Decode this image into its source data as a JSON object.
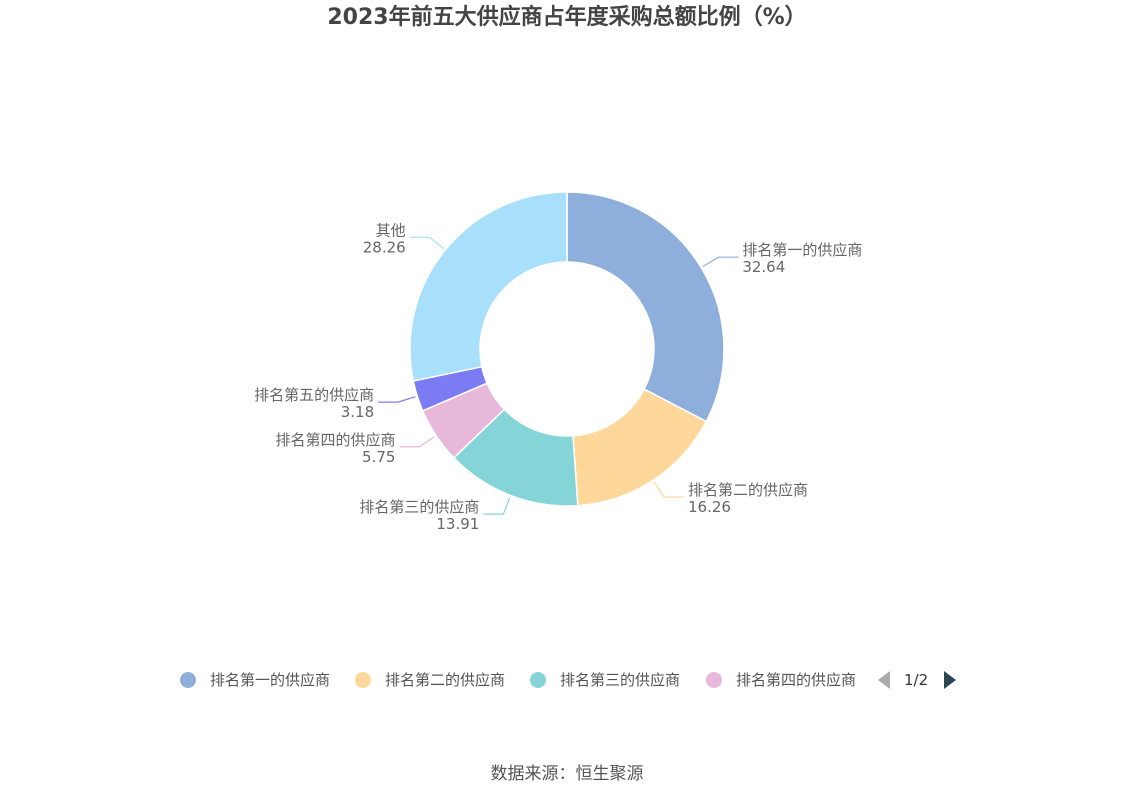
{
  "title": "2023年前五大供应商占年度采购总额比例（%）",
  "source": "数据来源：恒生聚源",
  "chart_data": {
    "type": "pie",
    "variant": "donut",
    "title": "2023年前五大供应商占年度采购总额比例（%）",
    "categories": [
      "排名第一的供应商",
      "排名第二的供应商",
      "排名第三的供应商",
      "排名第四的供应商",
      "排名第五的供应商",
      "其他"
    ],
    "values": [
      32.64,
      16.26,
      13.91,
      5.75,
      3.18,
      28.26
    ],
    "value_labels": [
      "32.64",
      "16.26",
      "13.91",
      "5.75",
      "3.18",
      "28.26"
    ],
    "colors": [
      "#8eaedc",
      "#fdd89a",
      "#85d5d8",
      "#e7b8d9",
      "#7b7cf3",
      "#a8dffa"
    ],
    "legend_position": "bottom",
    "legend_visible_items": [
      "排名第一的供应商",
      "排名第二的供应商",
      "排名第三的供应商",
      "排名第四的供应商"
    ]
  },
  "legend": {
    "items": [
      {
        "label": "排名第一的供应商",
        "color": "#8eaedc"
      },
      {
        "label": "排名第二的供应商",
        "color": "#fdd89a"
      },
      {
        "label": "排名第三的供应商",
        "color": "#85d5d8"
      },
      {
        "label": "排名第四的供应商",
        "color": "#e7b8d9"
      }
    ],
    "page_indicator": "1/2",
    "prev_icon": "triangle-left-icon",
    "next_icon": "triangle-right-icon"
  }
}
